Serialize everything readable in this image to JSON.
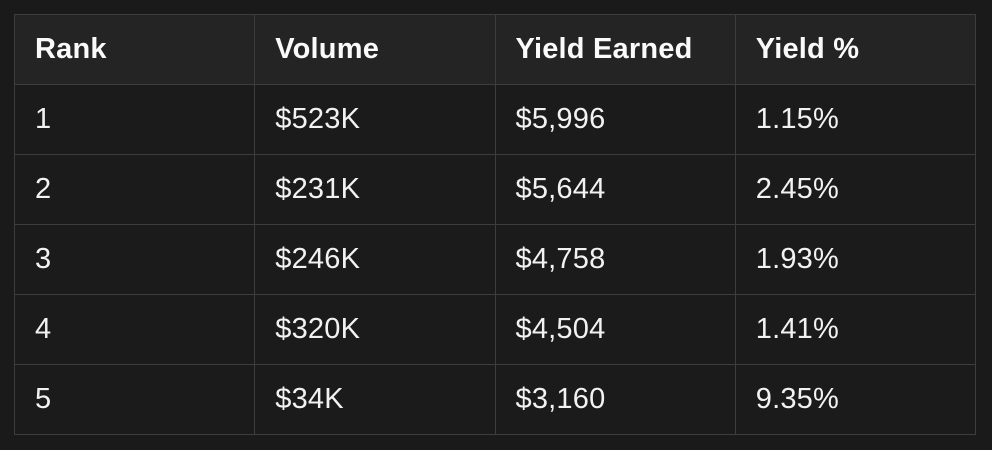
{
  "colors": {
    "page_background": "#1a1a1a",
    "header_background": "#242424",
    "row_background": "#1b1b1b",
    "border": "#3d3d3d",
    "text": "#f2f2f2"
  },
  "table": {
    "columns": [
      {
        "label": "Rank"
      },
      {
        "label": "Volume"
      },
      {
        "label": "Yield Earned"
      },
      {
        "label": "Yield %"
      }
    ],
    "rows": [
      {
        "rank": "1",
        "volume": "$523K",
        "yield_earned": "$5,996",
        "yield_pct": "1.15%"
      },
      {
        "rank": "2",
        "volume": "$231K",
        "yield_earned": "$5,644",
        "yield_pct": "2.45%"
      },
      {
        "rank": "3",
        "volume": "$246K",
        "yield_earned": "$4,758",
        "yield_pct": "1.93%"
      },
      {
        "rank": "4",
        "volume": "$320K",
        "yield_earned": "$4,504",
        "yield_pct": "1.41%"
      },
      {
        "rank": "5",
        "volume": "$34K",
        "yield_earned": "$3,160",
        "yield_pct": "9.35%"
      }
    ]
  }
}
